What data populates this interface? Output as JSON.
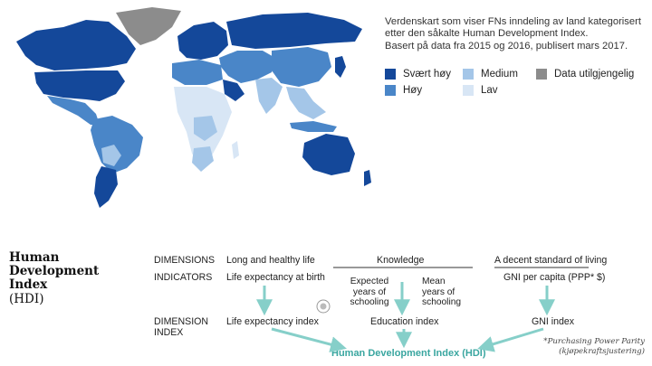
{
  "caption": {
    "line1": "Verdenskart som viser FNs inndeling av land kategorisert",
    "line2": "etter den såkalte Human Development Index.",
    "line3": "Basert på data fra 2015 og 2016, publisert mars 2017."
  },
  "legend": [
    {
      "label": "Svært høy",
      "color": "#14489a"
    },
    {
      "label": "Høy",
      "color": "#4a86c8"
    },
    {
      "label": "Medium",
      "color": "#a4c6e8"
    },
    {
      "label": "Lav",
      "color": "#d8e6f5"
    },
    {
      "label": "Data utilgjengelig",
      "color": "#8c8c8c"
    }
  ],
  "hdi": {
    "title_line1": "Human",
    "title_line2": "Development",
    "title_line3": "Index",
    "subtitle": "(HDI)"
  },
  "rows": {
    "dimensions": "DIMENSIONS",
    "indicators": "INDICATORS",
    "dimension_index_1": "DIMENSION",
    "dimension_index_2": "INDEX"
  },
  "columns": {
    "health": {
      "dimension": "Long and healthy life",
      "indicator": "Life expectancy at birth",
      "index": "Life expectancy index"
    },
    "knowledge": {
      "dimension": "Knowledge",
      "indicator_a_1": "Expected",
      "indicator_a_2": "years of",
      "indicator_a_3": "schooling",
      "indicator_b_1": "Mean",
      "indicator_b_2": "years of",
      "indicator_b_3": "schooling",
      "index": "Education index"
    },
    "living": {
      "dimension": "A decent standard of living",
      "indicator": "GNI per capita (PPP* $)",
      "index": "GNI index"
    }
  },
  "output": "Human Development Index (HDI)",
  "footnote": {
    "line1": "*Purchasing Power Parity",
    "line2": "(kjøpekraftsjustering)"
  },
  "colors": {
    "very_high": "#14489a",
    "high": "#4a86c8",
    "medium": "#a4c6e8",
    "low": "#d8e6f5",
    "na": "#8c8c8c",
    "arrow": "#86cfc9",
    "output": "#3aa6a0"
  }
}
